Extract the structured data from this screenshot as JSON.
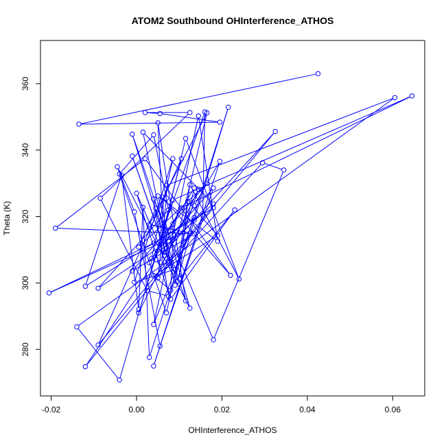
{
  "chart_data": {
    "type": "line",
    "title": "ATOM2 Southbound OHInterference_ATHOS",
    "xlabel": "OHInterference_ATHOS",
    "ylabel": "Theta (K)",
    "xlim": [
      -0.0225,
      0.0675
    ],
    "ylim": [
      266,
      373
    ],
    "xticks": [
      -0.02,
      0.0,
      0.02,
      0.04,
      0.06
    ],
    "xtick_labels": [
      "-0.02",
      "0.00",
      "0.02",
      "0.04",
      "0.06"
    ],
    "yticks": [
      280,
      300,
      320,
      340,
      360
    ],
    "ytick_labels": [
      "280",
      "300",
      "320",
      "340",
      "360"
    ],
    "grid": false,
    "legend": "none",
    "series": [
      {
        "color": "#0000ff",
        "marker": "open-circle",
        "points": [
          [
            0.0425,
            363.0
          ],
          [
            -0.0085,
            325.5
          ],
          [
            0.0345,
            334.0
          ],
          [
            0.0295,
            336.2
          ],
          [
            0.0,
            327.0
          ],
          [
            0.0605,
            355.8
          ],
          [
            -0.014,
            286.8
          ],
          [
            0.0645,
            356.3
          ],
          [
            -0.0205,
            297.0
          ],
          [
            0.0325,
            345.6
          ],
          [
            -0.009,
            298.4
          ],
          [
            0.0055,
            351.0
          ],
          [
            0.002,
            351.3
          ],
          [
            0.0165,
            351.2
          ],
          [
            0.0125,
            351.3
          ],
          [
            0.016,
            351.5
          ],
          [
            0.0145,
            350.3
          ],
          [
            0.0215,
            352.9
          ],
          [
            0.005,
            348.2
          ],
          [
            -0.0135,
            347.8
          ],
          [
            0.0195,
            348.4
          ],
          [
            0.004,
            344.6
          ],
          [
            0.0015,
            345.4
          ],
          [
            -0.001,
            344.8
          ],
          [
            0.0115,
            343.5
          ],
          [
            0.002,
            337.4
          ],
          [
            -0.001,
            338.2
          ],
          [
            0.0085,
            337.4
          ],
          [
            0.0105,
            337.4
          ],
          [
            0.0195,
            336.6
          ],
          [
            -0.0045,
            335.0
          ],
          [
            -0.004,
            332.8
          ],
          [
            -0.0035,
            332.4
          ],
          [
            0.007,
            329.4
          ],
          [
            0.0125,
            329.6
          ],
          [
            0.0165,
            330.0
          ],
          [
            0.0135,
            328.6
          ],
          [
            0.0145,
            328.2
          ],
          [
            0.018,
            328.6
          ],
          [
            0.006,
            325.9
          ],
          [
            0.004,
            325.3
          ],
          [
            0.005,
            326.2
          ],
          [
            0.007,
            325.5
          ],
          [
            0.0085,
            325.0
          ],
          [
            0.012,
            324.6
          ],
          [
            0.0015,
            322.8
          ],
          [
            0.0045,
            322.5
          ],
          [
            0.0075,
            322.0
          ],
          [
            0.0105,
            322.6
          ],
          [
            0.0135,
            323.3
          ],
          [
            0.018,
            323.8
          ],
          [
            0.018,
            322.6
          ],
          [
            0.023,
            322.0
          ],
          [
            -0.0005,
            321.4
          ],
          [
            0.003,
            317.6
          ],
          [
            0.0085,
            317.8
          ],
          [
            0.0135,
            319.7
          ],
          [
            0.0135,
            318.9
          ],
          [
            0.0155,
            320.4
          ],
          [
            -0.019,
            316.5
          ],
          [
            0.006,
            315.3
          ],
          [
            0.011,
            315.1
          ],
          [
            0.0125,
            315.0
          ],
          [
            0.0135,
            314.8
          ],
          [
            0.019,
            314.3
          ],
          [
            0.019,
            312.6
          ],
          [
            0.0085,
            313.3
          ],
          [
            0.0075,
            312.6
          ],
          [
            0.004,
            312.0
          ],
          [
            0.0005,
            310.8
          ],
          [
            0.0055,
            310.6
          ],
          [
            0.0065,
            309.2
          ],
          [
            0.0065,
            308.2
          ],
          [
            0.0035,
            307.4
          ],
          [
            0.0045,
            307.0
          ],
          [
            0.0055,
            306.2
          ],
          [
            0.0075,
            306.7
          ],
          [
            0.003,
            306.1
          ],
          [
            0.008,
            305.2
          ],
          [
            0.009,
            304.1
          ],
          [
            -0.001,
            303.6
          ],
          [
            0.004,
            302.2
          ],
          [
            0.005,
            301.5
          ],
          [
            0.0095,
            300.5
          ],
          [
            0.01,
            301.2
          ],
          [
            -0.0005,
            300.2
          ],
          [
            0.022,
            302.3
          ],
          [
            0.024,
            301.2
          ],
          [
            -0.012,
            299.0
          ],
          [
            0.0025,
            297.7
          ],
          [
            0.008,
            297.8
          ],
          [
            0.009,
            299.3
          ],
          [
            0.0075,
            296.0
          ],
          [
            0.008,
            295.1
          ],
          [
            0.0005,
            292.0
          ],
          [
            0.0005,
            291.0
          ],
          [
            0.007,
            291.0
          ],
          [
            0.0125,
            292.4
          ],
          [
            0.0115,
            294.6
          ],
          [
            0.004,
            287.5
          ],
          [
            -0.009,
            281.3
          ],
          [
            0.0055,
            281.0
          ],
          [
            0.003,
            277.6
          ],
          [
            0.018,
            282.9
          ],
          [
            -0.012,
            274.8
          ],
          [
            0.004,
            275.0
          ],
          [
            -0.004,
            270.8
          ]
        ],
        "path_order": [
          0,
          19,
          20,
          11,
          12,
          14,
          1,
          89,
          92,
          40,
          103,
          2,
          3,
          82,
          42,
          33,
          5,
          6,
          106,
          60,
          15,
          58,
          105,
          29,
          49,
          71,
          9,
          100,
          28,
          74,
          104,
          51,
          68,
          8,
          61,
          37,
          95,
          43,
          7,
          48,
          77,
          36,
          96,
          31,
          21,
          47,
          10,
          67,
          23,
          83,
          57,
          17,
          102,
          45,
          94,
          32,
          88,
          56,
          79,
          85,
          27,
          73,
          50,
          22,
          91,
          34,
          87,
          24,
          70,
          38,
          101,
          53,
          30,
          97,
          41,
          65,
          16,
          99,
          62,
          54,
          13,
          78,
          26,
          76,
          39,
          86,
          25,
          59,
          63,
          80,
          35,
          69,
          46,
          98,
          18,
          72,
          4,
          93,
          52,
          84,
          44,
          64,
          81,
          90,
          66,
          55,
          75
        ]
      }
    ]
  }
}
